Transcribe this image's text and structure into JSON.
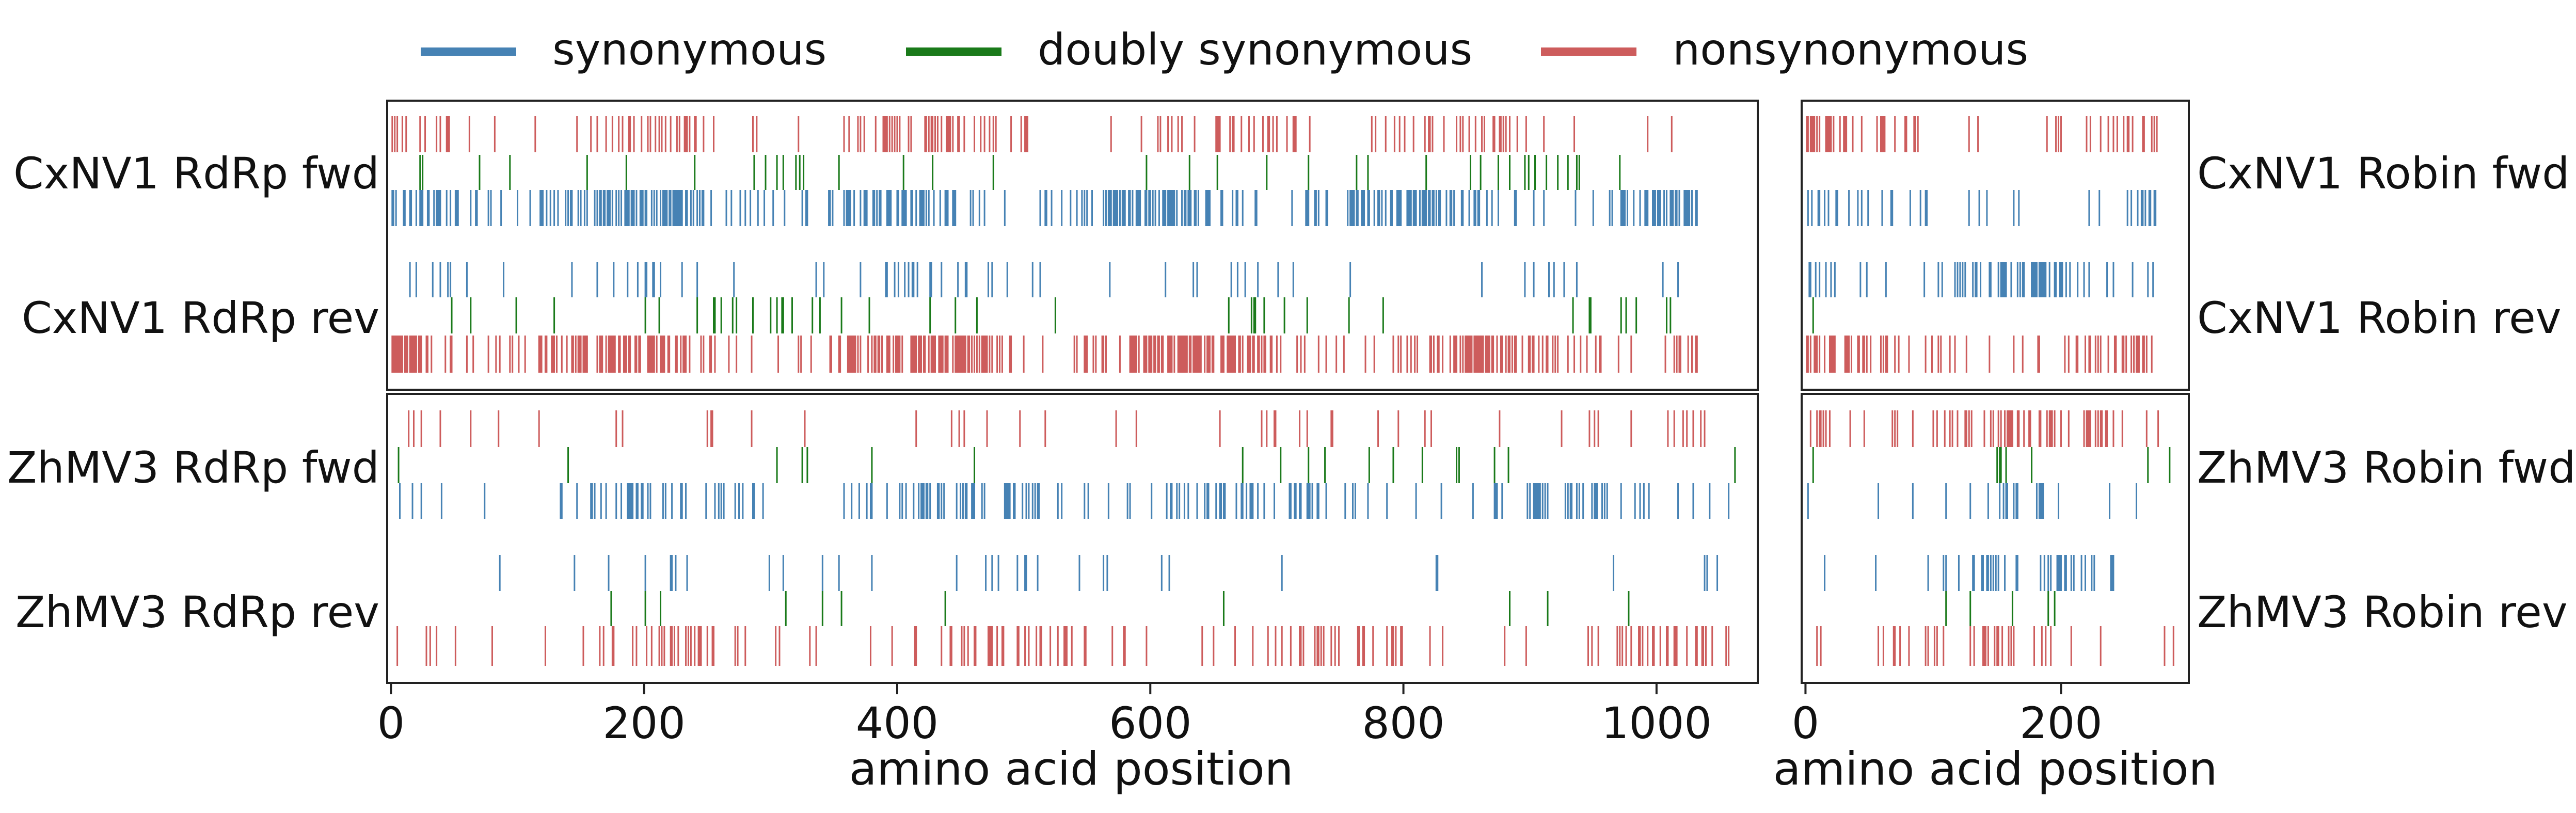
{
  "legend": [
    {
      "name": "synonymous",
      "color": "#4682b4"
    },
    {
      "name": "doubly synonymous",
      "color": "#1a7a1a"
    },
    {
      "name": "nonsynonymous",
      "color": "#cd5c5c"
    }
  ],
  "chart_data": [
    {
      "type": "event-raster",
      "panel": "RdRp",
      "xlabel": "amino acid position",
      "xlim": [
        -3,
        1080
      ],
      "xticks": [
        0,
        200,
        400,
        600,
        800,
        1000
      ],
      "rows": [
        {
          "label": "CxNV1 RdRp fwd",
          "length": 1032
        },
        {
          "label": "CxNV1 RdRp rev",
          "length": 1032
        },
        {
          "label": "ZhMV3 RdRp fwd",
          "length": 1062
        },
        {
          "label": "ZhMV3 RdRp rev",
          "length": 1062
        }
      ],
      "density": {
        "CxNV1 RdRp fwd": {
          "synonymous": 0.6,
          "doubly synonymous": 0.05,
          "nonsynonymous": 0.3
        },
        "CxNV1 RdRp rev": {
          "synonymous": 0.12,
          "doubly synonymous": 0.06,
          "nonsynonymous": 0.7
        },
        "ZhMV3 RdRp fwd": {
          "synonymous": 0.3,
          "doubly synonymous": 0.03,
          "nonsynonymous": 0.1
        },
        "ZhMV3 RdRp rev": {
          "synonymous": 0.06,
          "doubly synonymous": 0.03,
          "nonsynonymous": 0.28
        }
      }
    },
    {
      "type": "event-raster",
      "panel": "Robin",
      "xlabel": "amino acid position",
      "xlim": [
        -3,
        300
      ],
      "xticks": [
        0,
        200
      ],
      "rows": [
        {
          "label": "CxNV1 Robin fwd",
          "length": 275
        },
        {
          "label": "CxNV1 Robin rev",
          "length": 275
        },
        {
          "label": "ZhMV3 Robin fwd",
          "length": 298
        },
        {
          "label": "ZhMV3 Robin rev",
          "length": 298
        }
      ],
      "density": {
        "CxNV1 Robin fwd": {
          "synonymous": 0.45,
          "doubly synonymous": 0.02,
          "nonsynonymous": 0.6
        },
        "CxNV1 Robin rev": {
          "synonymous": 0.45,
          "doubly synonymous": 0.02,
          "nonsynonymous": 0.7
        },
        "ZhMV3 Robin fwd": {
          "synonymous": 0.12,
          "doubly synonymous": 0.05,
          "nonsynonymous": 0.4
        },
        "ZhMV3 Robin rev": {
          "synonymous": 0.22,
          "doubly synonymous": 0.03,
          "nonsynonymous": 0.25
        }
      }
    }
  ]
}
